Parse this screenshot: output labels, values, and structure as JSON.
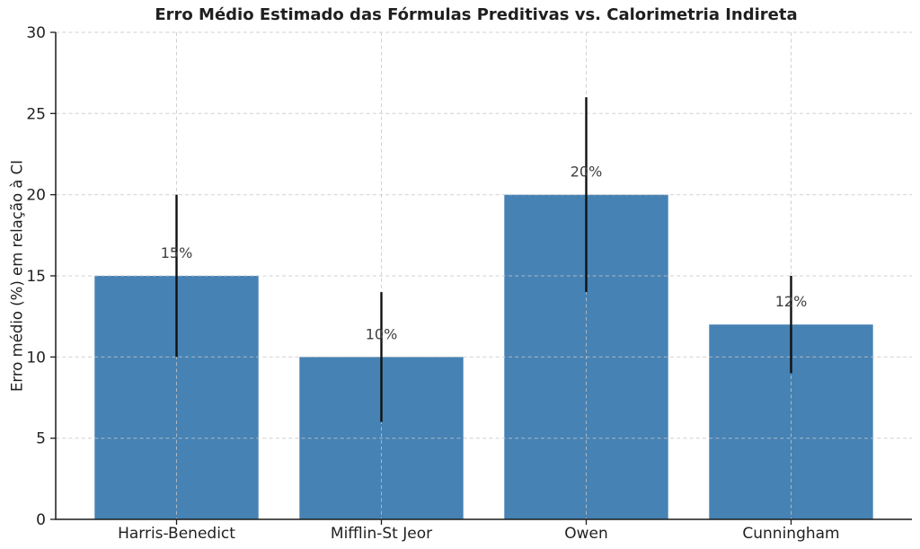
{
  "chart_data": {
    "type": "bar",
    "title": "Erro Médio Estimado das Fórmulas Preditivas vs. Calorimetria Indireta",
    "xlabel": "",
    "ylabel": "Erro médio (%) em relação à CI",
    "categories": [
      "Harris-Benedict",
      "Mifflin-St Jeor",
      "Owen",
      "Cunningham"
    ],
    "values": [
      15,
      10,
      20,
      12
    ],
    "errors_symmetric": [
      5,
      4,
      6,
      3
    ],
    "error_ranges": [
      [
        10,
        20
      ],
      [
        6,
        14
      ],
      [
        14,
        26
      ],
      [
        9,
        15
      ]
    ],
    "bar_labels": [
      "15%",
      "10%",
      "20%",
      "12%"
    ],
    "ylim": [
      0,
      30
    ],
    "yticks": [
      0,
      5,
      10,
      15,
      20,
      25,
      30
    ],
    "grid": {
      "horizontal": true,
      "vertical": true,
      "style": "dashed"
    },
    "legend": {
      "visible": false
    },
    "colors": {
      "bar": "#4682B4",
      "error_bar": "#111111",
      "grid": "#c6c6c6",
      "axis": "#1c1c1c",
      "title": "#1f1f1f",
      "tick_label": "#1f1f1f",
      "bar_label": "#404040",
      "background": "#ffffff"
    }
  }
}
